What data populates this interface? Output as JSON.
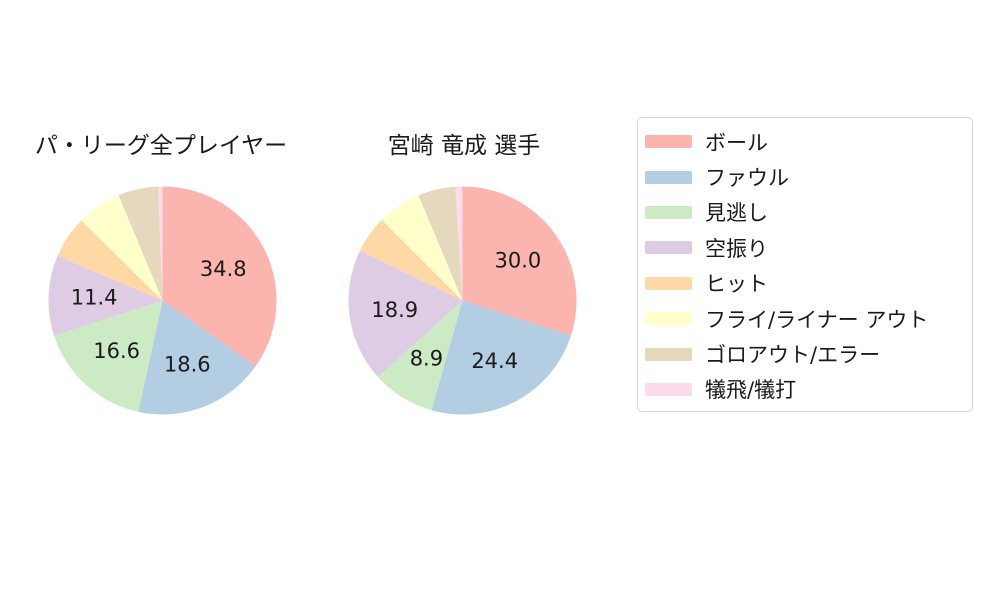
{
  "figure": {
    "background": "#ffffff",
    "text_color": "#1a1a1a",
    "legend_border_color": "#d4d4d4"
  },
  "palette": [
    "#fbb4ae",
    "#b3cde3",
    "#ccebc5",
    "#decbe4",
    "#fed9a6",
    "#ffffcc",
    "#e5d8bd",
    "#fddaec"
  ],
  "legend": {
    "position": "right",
    "items": [
      {
        "label": "ボール",
        "color": "#fbb4ae"
      },
      {
        "label": "ファウル",
        "color": "#b3cde3"
      },
      {
        "label": "見逃し",
        "color": "#ccebc5"
      },
      {
        "label": "空振り",
        "color": "#decbe4"
      },
      {
        "label": "ヒット",
        "color": "#fed9a6"
      },
      {
        "label": "フライ/ライナー アウト",
        "color": "#ffffcc"
      },
      {
        "label": "ゴロアウト/エラー",
        "color": "#e5d8bd"
      },
      {
        "label": "犠飛/犠打",
        "color": "#fddaec"
      }
    ]
  },
  "chart_data": [
    {
      "type": "pie",
      "title": "パ・リーグ全プレイヤー",
      "categories": [
        "ボール",
        "ファウル",
        "見逃し",
        "空振り",
        "ヒット",
        "フライ/ライナー アウト",
        "ゴロアウト/エラー",
        "犠飛/犠打"
      ],
      "values": [
        34.8,
        18.6,
        16.6,
        11.4,
        6.0,
        6.3,
        5.7,
        0.6
      ],
      "slice_labels": [
        "34.8",
        "18.6",
        "16.6",
        "11.4",
        "",
        "",
        "",
        ""
      ],
      "start_angle": "12-oclock",
      "direction": "clockwise",
      "label_distance": 0.6
    },
    {
      "type": "pie",
      "title": "宮崎 竜成 選手",
      "categories": [
        "ボール",
        "ファウル",
        "見逃し",
        "空振り",
        "ヒット",
        "フライ/ライナー アウト",
        "ゴロアウト/エラー",
        "犠飛/犠打"
      ],
      "values": [
        30.0,
        24.4,
        8.9,
        18.9,
        5.3,
        6.2,
        5.3,
        1.0
      ],
      "slice_labels": [
        "30.0",
        "24.4",
        "8.9",
        "18.9",
        "",
        "",
        "",
        ""
      ],
      "start_angle": "12-oclock",
      "direction": "clockwise",
      "label_distance": 0.6
    }
  ]
}
